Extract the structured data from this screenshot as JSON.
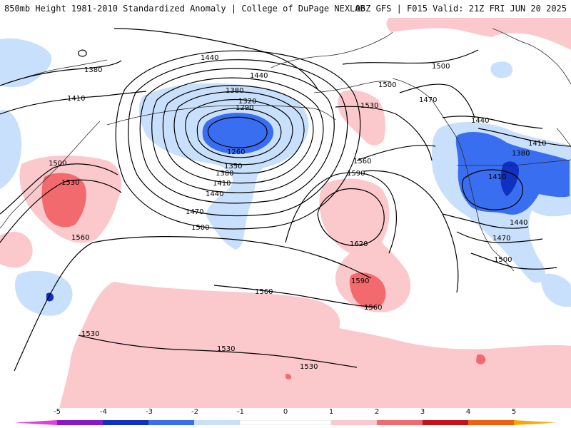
{
  "header": {
    "left_title": "850mb Height 1981-2010 Standardized Anomaly | College of DuPage NEXLAB",
    "right_title": "06Z GFS | F015 Valid: 21Z FRI JUN 20 2025"
  },
  "colorbar": {
    "ticks": [
      "-5",
      "-4",
      "-3",
      "-2",
      "-1",
      "0",
      "1",
      "2",
      "3",
      "4",
      "5"
    ],
    "colors": {
      "minus5": "#e040e0",
      "minus4": "#8a18c8",
      "minus3": "#1030c0",
      "minus2": "#3a6ef0",
      "minus1": "#c8e0fb",
      "zero": "#ffffff",
      "plus1": "#fbc8cc",
      "plus2": "#f36a6e",
      "plus3": "#c8101a",
      "plus4": "#f06010",
      "plus5": "#f8a800"
    }
  },
  "contour_labels": [
    {
      "id": "1380-nw",
      "text": "1380"
    },
    {
      "id": "1410-w",
      "text": "1410"
    },
    {
      "id": "1440-top",
      "text": "1440"
    },
    {
      "id": "1440-top2",
      "text": "1440"
    },
    {
      "id": "1380-low",
      "text": "1380"
    },
    {
      "id": "1320",
      "text": "1320"
    },
    {
      "id": "1290",
      "text": "1290"
    },
    {
      "id": "1260",
      "text": "1260"
    },
    {
      "id": "1350",
      "text": "1350"
    },
    {
      "id": "1380-b",
      "text": "1380"
    },
    {
      "id": "1410-b",
      "text": "1410"
    },
    {
      "id": "1440-b",
      "text": "1440"
    },
    {
      "id": "1470-b",
      "text": "1470"
    },
    {
      "id": "1500-b",
      "text": "1500"
    },
    {
      "id": "1500-w",
      "text": "1500"
    },
    {
      "id": "1530-w",
      "text": "1530"
    },
    {
      "id": "1560-w",
      "text": "1560"
    },
    {
      "id": "1530-mid",
      "text": "1530"
    },
    {
      "id": "1560-mid",
      "text": "1560"
    },
    {
      "id": "1590-mid",
      "text": "1590"
    },
    {
      "id": "1620",
      "text": "1620"
    },
    {
      "id": "1590-s",
      "text": "1590"
    },
    {
      "id": "1560-s",
      "text": "1560"
    },
    {
      "id": "1560-s2",
      "text": "1560"
    },
    {
      "id": "1530-sw",
      "text": "1530"
    },
    {
      "id": "1530-s",
      "text": "1530"
    },
    {
      "id": "1530-s2",
      "text": "1530"
    },
    {
      "id": "1500-ak",
      "text": "1500"
    },
    {
      "id": "1500-ne",
      "text": "1500"
    },
    {
      "id": "1470-ne",
      "text": "1470"
    },
    {
      "id": "1440-ne",
      "text": "1440"
    },
    {
      "id": "1410-ne",
      "text": "1410"
    },
    {
      "id": "1380-us",
      "text": "1380"
    },
    {
      "id": "1410-us",
      "text": "1410"
    },
    {
      "id": "1440-us",
      "text": "1440"
    },
    {
      "id": "1470-us",
      "text": "1470"
    },
    {
      "id": "1500-us",
      "text": "1500"
    }
  ]
}
